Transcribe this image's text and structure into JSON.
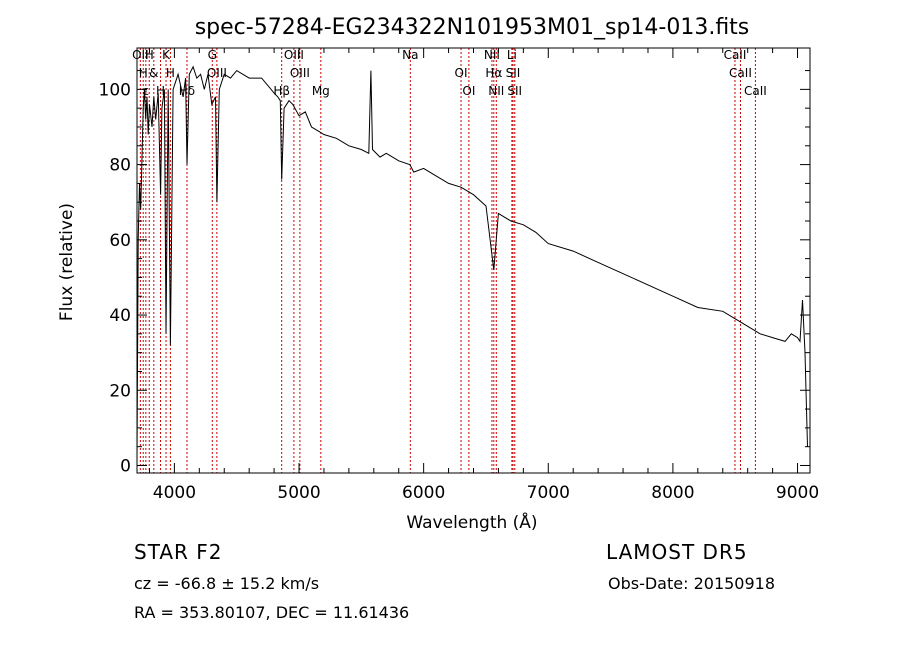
{
  "chart_data": {
    "type": "line",
    "title": "spec-57284-EG234322N101953M01_sp14-013.fits",
    "xlabel": "Wavelength (Å)",
    "ylabel": "Flux (relative)",
    "xlim": [
      3700,
      9100
    ],
    "ylim": [
      -2,
      111
    ],
    "grid": false,
    "x_ticks": [
      4000,
      5000,
      6000,
      7000,
      8000,
      9000
    ],
    "x_tick_labels": [
      "4000",
      "5000",
      "6000",
      "7000",
      "8000",
      "9000"
    ],
    "y_ticks": [
      0,
      20,
      40,
      60,
      80,
      100
    ],
    "y_tick_labels": [
      "0",
      "20",
      "40",
      "60",
      "80",
      "100"
    ],
    "series": [
      {
        "x": [
          3700,
          3710,
          3720,
          3730,
          3740,
          3750,
          3760,
          3770,
          3780,
          3790,
          3800,
          3820,
          3835,
          3850,
          3870,
          3889,
          3900,
          3920,
          3933,
          3950,
          3968,
          3990,
          4010,
          4030,
          4050,
          4070,
          4090,
          4101,
          4120,
          4150,
          4180,
          4210,
          4240,
          4270,
          4300,
          4330,
          4341,
          4360,
          4400,
          4450,
          4500,
          4550,
          4600,
          4650,
          4700,
          4750,
          4800,
          4830,
          4850,
          4861,
          4880,
          4920,
          4950,
          5000,
          5050,
          5100,
          5150,
          5200,
          5300,
          5400,
          5500,
          5560,
          5577,
          5590,
          5650,
          5700,
          5800,
          5890,
          5920,
          6000,
          6100,
          6200,
          6300,
          6400,
          6500,
          6563,
          6600,
          6700,
          6800,
          6900,
          7000,
          7200,
          7400,
          7600,
          7800,
          8000,
          8200,
          8400,
          8500,
          8600,
          8650,
          8700,
          8800,
          8900,
          8950,
          9000,
          9020,
          9040,
          9060,
          9080
        ],
        "y": [
          2,
          60,
          75,
          68,
          82,
          95,
          100,
          92,
          98,
          88,
          96,
          90,
          98,
          92,
          99,
          72,
          95,
          100,
          35,
          100,
          32,
          100,
          102,
          104,
          101,
          98,
          103,
          80,
          104,
          106,
          103,
          104,
          100,
          104,
          96,
          98,
          70,
          100,
          104,
          103,
          105,
          104,
          103,
          103,
          103,
          101,
          99,
          98,
          97,
          76,
          95,
          97,
          96,
          93,
          94,
          90,
          89,
          88,
          87,
          85,
          84,
          83,
          105,
          84,
          82,
          83,
          81,
          80,
          78,
          79,
          77,
          75,
          74,
          72,
          69,
          52,
          67,
          65,
          64,
          62,
          59,
          57,
          54,
          51,
          48,
          45,
          42,
          41,
          39,
          37,
          36,
          35,
          34,
          33,
          35,
          34,
          33,
          44,
          30,
          5
        ]
      }
    ],
    "lines": [
      {
        "wavelength": 3727,
        "labels": [
          "OII"
        ]
      },
      {
        "wavelength": 3750,
        "labels": [
          "H"
        ]
      },
      {
        "wavelength": 3771,
        "labels": [
          "ɛ"
        ]
      },
      {
        "wavelength": 3798,
        "labels": [
          "H"
        ]
      },
      {
        "wavelength": 3835,
        "labels": [
          "&"
        ]
      },
      {
        "wavelength": 3889,
        "labels": [
          "H"
        ]
      },
      {
        "wavelength": 3933,
        "labels": [
          "K"
        ]
      },
      {
        "wavelength": 3968,
        "labels": [
          "H"
        ]
      },
      {
        "wavelength": 4101,
        "labels": [
          "Hδ"
        ]
      },
      {
        "wavelength": 4304,
        "labels": [
          "G"
        ]
      },
      {
        "wavelength": 4341,
        "labels": [
          "OIII"
        ]
      },
      {
        "wavelength": 4861,
        "labels": [
          "Hβ"
        ]
      },
      {
        "wavelength": 4959,
        "labels": [
          "OIII"
        ]
      },
      {
        "wavelength": 5007,
        "labels": [
          "OIII"
        ]
      },
      {
        "wavelength": 5175,
        "labels": [
          "Mg"
        ]
      },
      {
        "wavelength": 5893,
        "labels": [
          "Na"
        ]
      },
      {
        "wavelength": 6300,
        "labels": [
          "OI"
        ]
      },
      {
        "wavelength": 6363,
        "labels": [
          "OI"
        ]
      },
      {
        "wavelength": 6548,
        "labels": [
          "NII"
        ]
      },
      {
        "wavelength": 6563,
        "labels": [
          "Hα"
        ]
      },
      {
        "wavelength": 6583,
        "labels": [
          "NII"
        ]
      },
      {
        "wavelength": 6708,
        "labels": [
          "Li"
        ]
      },
      {
        "wavelength": 6717,
        "labels": [
          "SII"
        ]
      },
      {
        "wavelength": 6731,
        "labels": [
          "SII"
        ]
      },
      {
        "wavelength": 8498,
        "labels": [
          "CaII"
        ]
      },
      {
        "wavelength": 8542,
        "labels": [
          "CaII"
        ]
      },
      {
        "wavelength": 8662,
        "labels": [
          "CaII"
        ]
      }
    ]
  },
  "info": {
    "object_class": "STAR     F2",
    "survey": "LAMOST  DR5",
    "redshift": "cz = -66.8 ± 15.2 km/s",
    "obs_date": "Obs-Date: 20150918",
    "coords": "RA = 353.80107, DEC =  11.61436"
  },
  "colors": {
    "spectrum": "#000000",
    "line_markers": "#cc0000",
    "axes": "#000000"
  }
}
